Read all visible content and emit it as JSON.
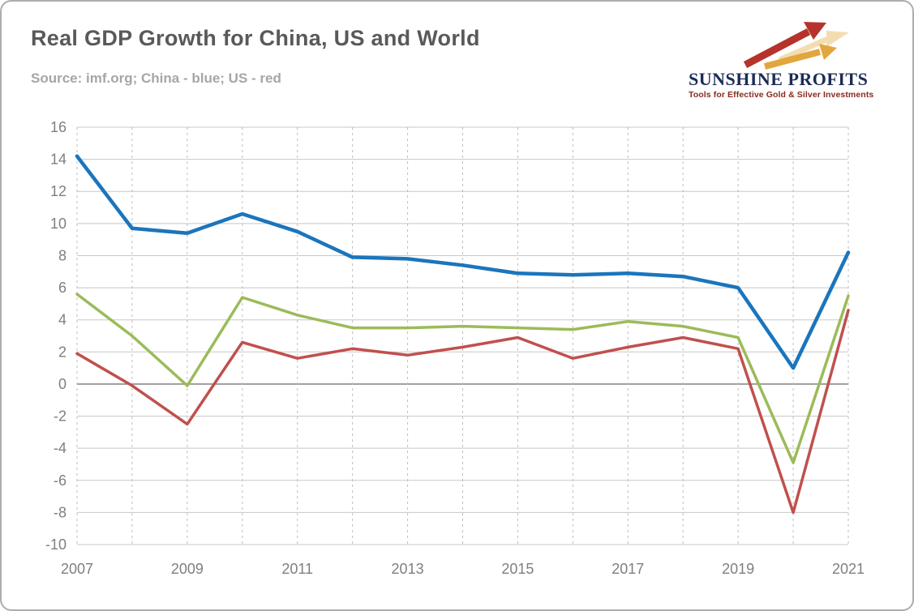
{
  "header": {
    "title": "Real GDP Growth for China, US and World",
    "source": "Source: imf.org; China - blue; US - red"
  },
  "logo": {
    "name": "SUNSHINE PROFITS",
    "tagline": "Tools for Effective Gold & Silver Investments",
    "name_color": "#1c2b56",
    "tagline_color": "#8a2a1e",
    "arrow_red": "#b5332c",
    "arrow_gold": "#e2a63d",
    "arrow_pale": "#f3ddb0"
  },
  "colors": {
    "title_text": "#595959",
    "source_text": "#a6a6a6",
    "tick_text": "#7f7f7f",
    "gridline": "#c8c8c8",
    "zero_line": "#8c8c8c"
  },
  "chart_data": {
    "type": "line",
    "title": "Real GDP Growth for China, US and World",
    "xlabel": "",
    "ylabel": "",
    "x": [
      2007,
      2008,
      2009,
      2010,
      2011,
      2012,
      2013,
      2014,
      2015,
      2016,
      2017,
      2018,
      2019,
      2020,
      2021
    ],
    "x_tick_labels": [
      "2007",
      "2009",
      "2011",
      "2013",
      "2015",
      "2017",
      "2019",
      "2021"
    ],
    "ylim": [
      -10,
      16
    ],
    "y_tick_step": 2,
    "grid": true,
    "legend_position": "none",
    "series": [
      {
        "name": "China",
        "color": "#1b75bc",
        "width": 4.5,
        "values": [
          14.2,
          9.7,
          9.4,
          10.6,
          9.5,
          7.9,
          7.8,
          7.4,
          6.9,
          6.8,
          6.9,
          6.7,
          6.0,
          1.0,
          8.2
        ]
      },
      {
        "name": "US",
        "color": "#c0504d",
        "width": 3.5,
        "values": [
          1.9,
          -0.1,
          -2.5,
          2.6,
          1.6,
          2.2,
          1.8,
          2.3,
          2.9,
          1.6,
          2.3,
          2.9,
          2.2,
          -8.0,
          4.6
        ]
      },
      {
        "name": "World",
        "color": "#9bbb59",
        "width": 3.5,
        "values": [
          5.6,
          3.0,
          -0.1,
          5.4,
          4.3,
          3.5,
          3.5,
          3.6,
          3.5,
          3.4,
          3.9,
          3.6,
          2.9,
          -4.9,
          5.5
        ]
      }
    ]
  }
}
